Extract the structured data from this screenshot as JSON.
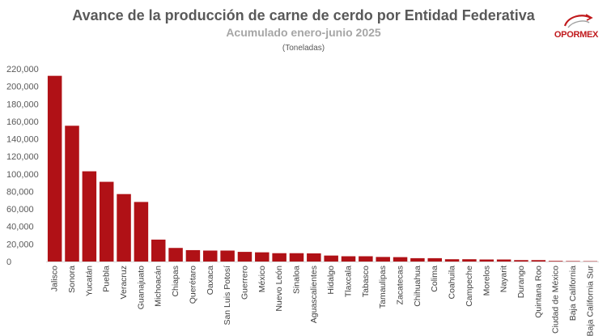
{
  "chart_data": {
    "type": "bar",
    "title": "Avance de la producción de carne de cerdo por Entidad Federativa",
    "subtitle": "Acumulado enero-junio 2025",
    "units": "(Toneladas)",
    "categories": [
      "Jalisco",
      "Sonora",
      "Yucatán",
      "Puebla",
      "Veracruz",
      "Guanajuato",
      "Michoacán",
      "Chiapas",
      "Querétaro",
      "Oaxaca",
      "San Luis Potosí",
      "Guerrero",
      "México",
      "Nuevo León",
      "Sinaloa",
      "Aguascalientes",
      "Hidalgo",
      "Tlaxcala",
      "Tabasco",
      "Tamaulipas",
      "Zacatecas",
      "Chihuahua",
      "Colima",
      "Coahuila",
      "Campeche",
      "Morelos",
      "Nayarit",
      "Durango",
      "Quintana Roo",
      "Ciudad de México",
      "Baja California",
      "Baja California Sur"
    ],
    "values": [
      212000,
      155000,
      103000,
      91000,
      77000,
      68000,
      25000,
      15500,
      13000,
      12500,
      12500,
      11000,
      10500,
      9500,
      9500,
      9300,
      6800,
      6000,
      6000,
      5200,
      5000,
      3800,
      3800,
      2600,
      2600,
      2300,
      2300,
      1600,
      1600,
      700,
      500,
      400
    ],
    "ylim": [
      0,
      220000
    ],
    "yticks": [
      0,
      20000,
      40000,
      60000,
      80000,
      100000,
      120000,
      140000,
      160000,
      180000,
      200000,
      220000
    ],
    "ytick_labels": [
      "0",
      "20,000",
      "40,000",
      "60,000",
      "80,000",
      "100,000",
      "120,000",
      "140,000",
      "160,000",
      "180,000",
      "200,000",
      "220,000"
    ],
    "grid": false,
    "legend": "none",
    "bar_color": "#b01116"
  },
  "logo": {
    "text": "OPORMEX",
    "color": "#c0191c"
  }
}
